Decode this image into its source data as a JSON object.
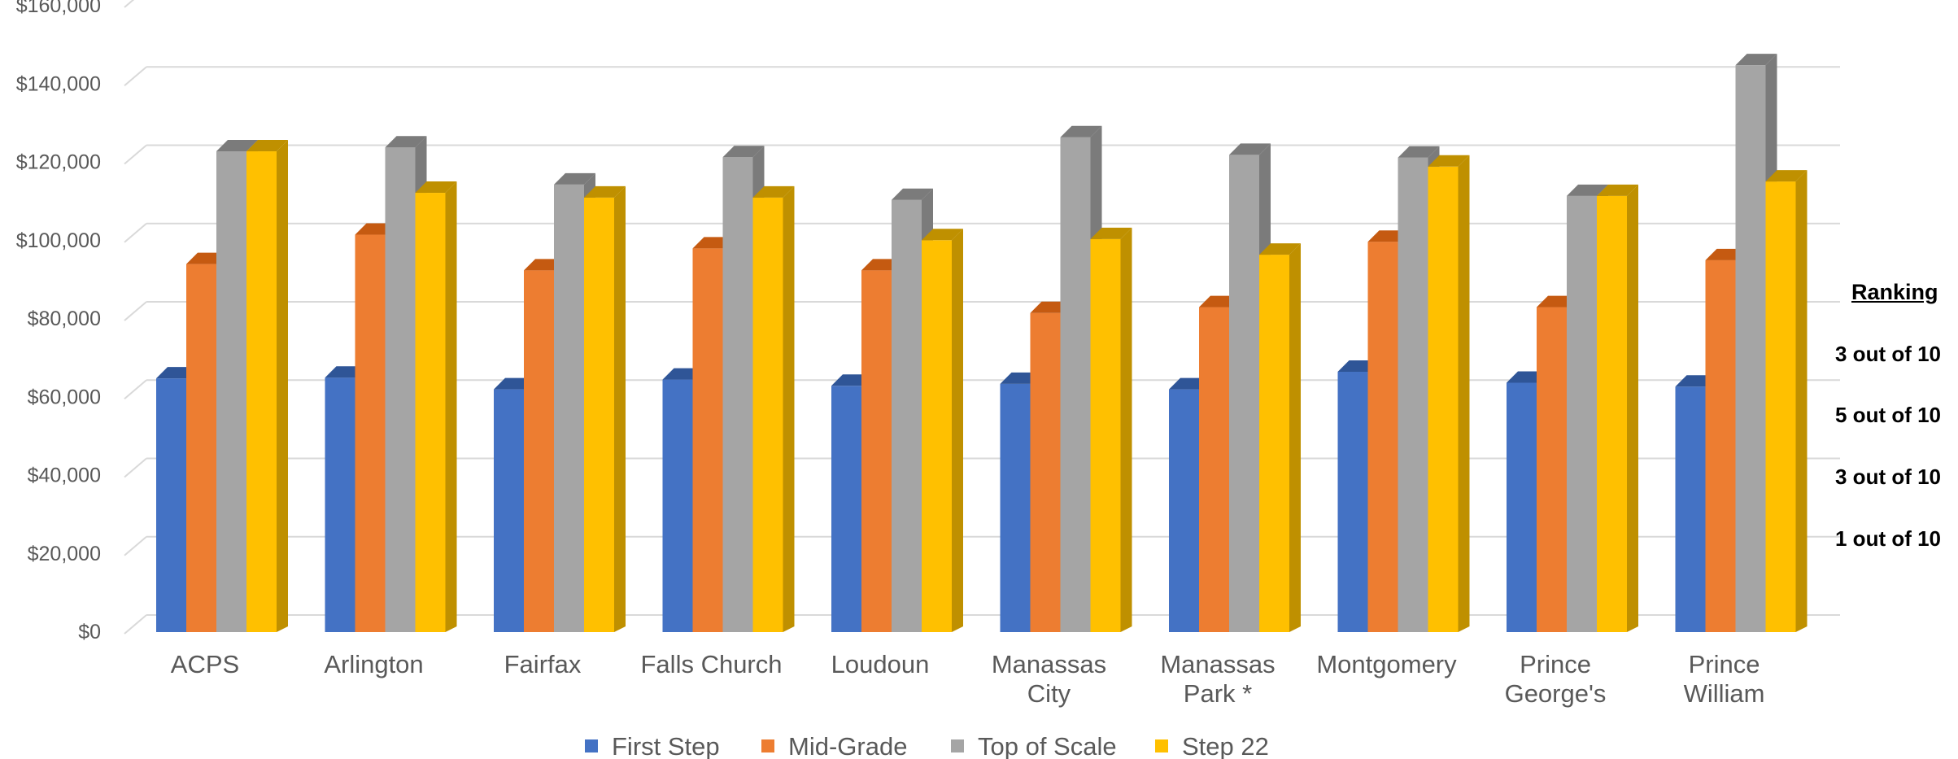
{
  "chart_data": {
    "type": "bar",
    "style": "3d-clustered-column",
    "categories": [
      "ACPS",
      [
        "Arlington"
      ],
      [
        "Fairfax"
      ],
      [
        "Falls Church"
      ],
      [
        "Loudoun"
      ],
      [
        "Manassas",
        "City"
      ],
      [
        "Manassas",
        "Park *"
      ],
      [
        "Montgomery"
      ],
      [
        "Prince",
        "George's"
      ],
      [
        "Prince",
        "William"
      ]
    ],
    "series": [
      {
        "name": "First Step",
        "color": "#4472C4",
        "side": "#2F5597",
        "values": [
          64800,
          65000,
          62000,
          64500,
          62900,
          63400,
          62000,
          66500,
          63700,
          62700
        ]
      },
      {
        "name": "Mid-Grade",
        "color": "#ED7D31",
        "side": "#C55A11",
        "values": [
          94000,
          101500,
          92400,
          98000,
          92400,
          81500,
          83000,
          99700,
          83000,
          95000
        ]
      },
      {
        "name": "Top of Scale",
        "color": "#A5A5A5",
        "side": "#7B7B7B",
        "values": [
          122800,
          123800,
          114300,
          121300,
          110400,
          126400,
          121900,
          121200,
          111400,
          144800
        ]
      },
      {
        "name": "Step 22",
        "color": "#FFC000",
        "side": "#BF9000",
        "values": [
          122800,
          112200,
          111000,
          111000,
          100100,
          100400,
          96400,
          118900,
          111400,
          115100
        ]
      }
    ],
    "yticks": [
      "$0",
      "$20,000",
      "$40,000",
      "$60,000",
      "$80,000",
      "$100,000",
      "$120,000",
      "$140,000",
      "$160,000"
    ],
    "ylim": [
      0,
      160000
    ],
    "grid": true,
    "legend": "bottom"
  },
  "ranking": {
    "title": "Ranking",
    "items": [
      "3 out of 10",
      "5 out of 10",
      "3 out of 10",
      "1 out of 10"
    ]
  }
}
